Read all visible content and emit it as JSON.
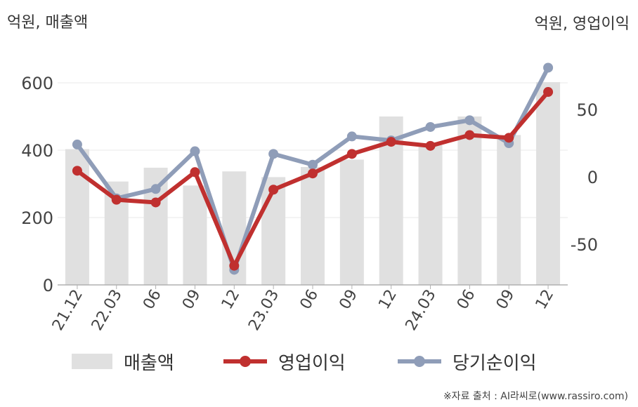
{
  "units": {
    "left": "억원, 매출액",
    "right": "억원, 영업이익"
  },
  "source": "※자료 출처 : AI라씨로(www.rassiro.com)",
  "colors": {
    "revenue": "#e0e0e0",
    "operating_profit": "#c0302f",
    "net_income": "#8f9db8"
  },
  "chart_data": {
    "type": "bar",
    "categories": [
      "21.12",
      "22.03",
      "06",
      "09",
      "12",
      "23.03",
      "06",
      "09",
      "12",
      "24.03",
      "06",
      "09",
      "12"
    ],
    "left_ticks": [
      "0",
      "200",
      "400",
      "600"
    ],
    "right_ticks": [
      "-50",
      "0",
      "50"
    ],
    "ylim_left": [
      0,
      600
    ],
    "ylim_right": [
      -80,
      75
    ],
    "grid": true,
    "legend": "bottom",
    "series": [
      {
        "name": "매출액",
        "type": "bar",
        "axis": "left",
        "values": [
          403,
          307,
          348,
          295,
          337,
          320,
          350,
          372,
          500,
          415,
          500,
          445,
          602
        ]
      },
      {
        "name": "영업이익",
        "type": "line",
        "axis": "right",
        "values": [
          4.5,
          -17,
          -19,
          3.5,
          -66,
          -9.5,
          2.5,
          17,
          26,
          23,
          31,
          29,
          63
        ]
      },
      {
        "name": "당기순이익",
        "type": "line",
        "axis": "right",
        "values": [
          24,
          -16,
          -9,
          19,
          -69,
          17,
          9,
          30,
          27,
          37,
          42,
          25,
          81
        ]
      }
    ]
  }
}
